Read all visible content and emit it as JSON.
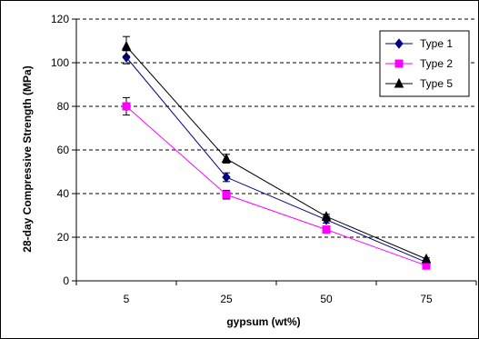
{
  "chart_data": {
    "type": "line",
    "xlabel": "gypsum (wt%)",
    "ylabel": "28-day Compressive Strength (MPa)",
    "categories": [
      "5",
      "25",
      "50",
      "75"
    ],
    "ylim": [
      0,
      120
    ],
    "yticks": [
      0,
      20,
      40,
      60,
      80,
      100,
      120
    ],
    "grid": "horizontal dashed",
    "legend_position": "top-right",
    "series": [
      {
        "name": "Type 1",
        "values": [
          102.5,
          47.5,
          28,
          8.5
        ],
        "errors": [
          3,
          2,
          1.5,
          1
        ],
        "color": "#000080",
        "marker": "diamond"
      },
      {
        "name": "Type 2",
        "values": [
          80,
          39.5,
          23.5,
          7
        ],
        "errors": [
          4,
          2,
          1,
          0.5
        ],
        "color": "#ff00ff",
        "marker": "square"
      },
      {
        "name": "Type 5",
        "values": [
          107.5,
          56,
          29.5,
          10
        ],
        "errors": [
          4.5,
          2,
          1,
          0.5
        ],
        "color": "#000000",
        "marker": "triangle"
      }
    ]
  }
}
